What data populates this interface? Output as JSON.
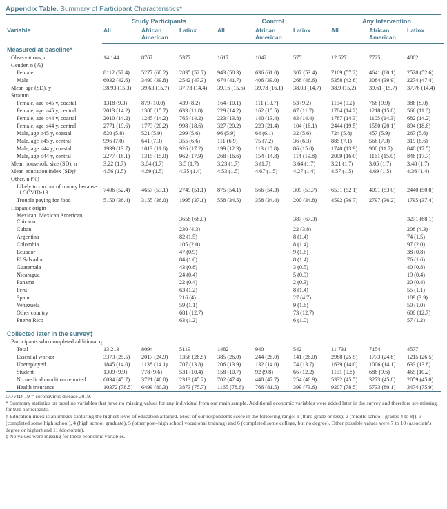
{
  "title_prefix": "Appendix Table.",
  "title_rest": " Summary of Participant Characteristics*",
  "col_var": "Variable",
  "groups": [
    "Study Participants",
    "Control",
    "Any Intervention"
  ],
  "subcols": [
    "All",
    "African American",
    "Latinx",
    "All",
    "African American",
    "Latinx",
    "All",
    "African American",
    "Latinx"
  ],
  "section1": "Measured at baseline*",
  "rows1": [
    {
      "l": "Observations, n",
      "i": 1,
      "v": [
        "14 144",
        "8767",
        "5377",
        "1617",
        "1042",
        "575",
        "12 527",
        "7725",
        "4802"
      ]
    },
    {
      "l": "Gender, n (%)",
      "i": 1,
      "v": [
        "",
        "",
        "",
        "",
        "",
        "",
        "",
        "",
        ""
      ]
    },
    {
      "l": "Female",
      "i": 2,
      "v": [
        "8112 (57.4)",
        "5277 (60.2)",
        "2835 (52.7)",
        "943 (58.3)",
        "636 (61.0)",
        "307 (53.4)",
        "7169 (57.2)",
        "4641 (60.1)",
        "2528 (52.6)"
      ]
    },
    {
      "l": "Male",
      "i": 2,
      "v": [
        "6032 (42.6)",
        "3490 (39.8)",
        "2542 (47.3)",
        "674 (41.7)",
        "406 (39.0)",
        "268 (46.6)",
        "5358 (42.8)",
        "3084 (39.9)",
        "2274 (47.4)"
      ]
    },
    {
      "l": "Mean age (SD), y",
      "i": 1,
      "v": [
        "38.93 (15.3)",
        "39.63 (15.7)",
        "37.78 (14.4)",
        "39.16 (15.6)",
        "39.78 (16.1)",
        "38.03 (14.7)",
        "38.9 (15.2)",
        "39.61 (15.7)",
        "37.76 (14.4)"
      ]
    },
    {
      "l": "Stratum",
      "i": 1,
      "v": [
        "",
        "",
        "",
        "",
        "",
        "",
        "",
        "",
        ""
      ]
    },
    {
      "l": "Female, age ≥45 y, coastal",
      "i": 2,
      "v": [
        "1318 (9.3)",
        "879 (10.0)",
        "439 (8.2)",
        "164 (10.1)",
        "111 (10.7)",
        "53 (9.2)",
        "1154 (9.2)",
        "768 (9.9)",
        "386 (8.0)"
      ]
    },
    {
      "l": "Female, age ≥45 y, central",
      "i": 2,
      "v": [
        "2013 (14.2)",
        "1380 (15.7)",
        "633 (11.8)",
        "229 (14.2)",
        "162 (15.5)",
        "67 (11.7)",
        "1784 (14.2)",
        "1218 (15.8)",
        "566 (11.8)"
      ]
    },
    {
      "l": "Female, age ≤44 y, coastal",
      "i": 2,
      "v": [
        "2010 (14.2)",
        "1245 (14.2)",
        "765 (14.2)",
        "223 (13.8)",
        "140 (13.4)",
        "83 (14.4)",
        "1787 (14.3)",
        "1105 (14.3)",
        "682 (14.2)"
      ]
    },
    {
      "l": "Female, age ≤44 y, central",
      "i": 2,
      "v": [
        "2771 (19.6)",
        "1773 (20.2)",
        "998 (18.6)",
        "327 (20.2)",
        "223 (21.4)",
        "104 (18.1)",
        "2444 (19.5)",
        "1550 (20.1)",
        "894 (18.6)"
      ]
    },
    {
      "l": "Male, age ≥45 y, coastal",
      "i": 2,
      "v": [
        "820 (5.8)",
        "521 (5.9)",
        "299 (5.6)",
        "96 (5.9)",
        "64 (6.1)",
        "32 (5.6)",
        "724 (5.8)",
        "457 (5.9)",
        "267 (5.6)"
      ]
    },
    {
      "l": "Male, age ≥45 y, central",
      "i": 2,
      "v": [
        "996 (7.0)",
        "641 (7.3)",
        "355 (6.6)",
        "111 (6.9)",
        "75 (7.2)",
        "36 (6.3)",
        "885 (7.1)",
        "566 (7.3)",
        "319 (6.6)"
      ]
    },
    {
      "l": "Male, age ≤44 y, coastal",
      "i": 2,
      "v": [
        "1939 (13.7)",
        "1013 (11.6)",
        "926 (17.2)",
        "199 (12.3)",
        "113 (10.8)",
        "86 (15.0)",
        "1740 (13.9)",
        "900 (11.7)",
        "840 (17.5)"
      ]
    },
    {
      "l": "Male, age ≤44 y, central",
      "i": 2,
      "v": [
        "2277 (16.1)",
        "1315 (15.0)",
        "962 (17.9)",
        "268 (16.6)",
        "154 (14.8)",
        "114 (19.8)",
        "2009 (16.0)",
        "1161 (15.0)",
        "848 (17.7)"
      ]
    },
    {
      "l": "Mean household size (SD), n",
      "i": 1,
      "v": [
        "3.22 (1.7)",
        "3.04 (1.7)",
        "3.5 (1.7)",
        "3.23 (1.7)",
        "3 (1.7)",
        "3.64 (1.7)",
        "3.21 (1.7)",
        "3.05 (1.7)",
        "3.48 (1.7)"
      ]
    },
    {
      "l": "Mean education index (SD)†",
      "i": 1,
      "v": [
        "4.56 (1.5)",
        "4.69 (1.5)",
        "4.35 (1.4)",
        "4.53 (1.5)",
        "4.67 (1.5)",
        "4.27 (1.4)",
        "4.57 (1.5)",
        "4.69 (1.5)",
        "4.36 (1.4)"
      ]
    },
    {
      "l": "Other, n (%)",
      "i": 1,
      "v": [
        "",
        "",
        "",
        "",
        "",
        "",
        "",
        "",
        ""
      ]
    },
    {
      "l": "Likely to run out of money because of COVID-19",
      "i": 2,
      "v": [
        "7406 (52.4)",
        "4657 (53.1)",
        "2749 (51.1)",
        "875 (54.1)",
        "566 (54.3)",
        "309 (53.7)",
        "6531 (52.1)",
        "4091 (53.0)",
        "2440 (50.8)"
      ]
    },
    {
      "l": "Trouble paying for food",
      "i": 2,
      "v": [
        "5150 (36.4)",
        "3155 (36.0)",
        "1995 (37.1)",
        "558 (34.5)",
        "358 (34.4)",
        "200 (34.8)",
        "4592 (36.7)",
        "2797 (36.2)",
        "1795 (37.4)"
      ]
    },
    {
      "l": "Hispanic origin",
      "i": 1,
      "v": [
        "",
        "",
        "",
        "",
        "",
        "",
        "",
        "",
        ""
      ]
    },
    {
      "l": "Mexican, Mexican American, Chicano",
      "i": 2,
      "v": [
        "",
        "",
        "3658 (68.0)",
        "",
        "",
        "387 (67.3)",
        "",
        "",
        "3271 (68.1)"
      ]
    },
    {
      "l": "Cuban",
      "i": 2,
      "v": [
        "",
        "",
        "230 (4.3)",
        "",
        "",
        "22 (3.8)",
        "",
        "",
        "208 (4.3)"
      ]
    },
    {
      "l": "Argentina",
      "i": 2,
      "v": [
        "",
        "",
        "82 (1.5)",
        "",
        "",
        "8 (1.4)",
        "",
        "",
        "74 (1.5)"
      ]
    },
    {
      "l": "Colombia",
      "i": 2,
      "v": [
        "",
        "",
        "105 (2.0)",
        "",
        "",
        "8 (1.4)",
        "",
        "",
        "97 (2.0)"
      ]
    },
    {
      "l": "Ecuador",
      "i": 2,
      "v": [
        "",
        "",
        "47 (0.9)",
        "",
        "",
        "9 (1.6)",
        "",
        "",
        "38 (0.8)"
      ]
    },
    {
      "l": "El Salvador",
      "i": 2,
      "v": [
        "",
        "",
        "84 (1.6)",
        "",
        "",
        "8 (1.4)",
        "",
        "",
        "76 (1.6)"
      ]
    },
    {
      "l": "Guatemala",
      "i": 2,
      "v": [
        "",
        "",
        "43 (0.8)",
        "",
        "",
        "3 (0.5)",
        "",
        "",
        "40 (0.8)"
      ]
    },
    {
      "l": "Nicaragua",
      "i": 2,
      "v": [
        "",
        "",
        "24 (0.4)",
        "",
        "",
        "5 (0.9)",
        "",
        "",
        "19 (0.4)"
      ]
    },
    {
      "l": "Panama",
      "i": 2,
      "v": [
        "",
        "",
        "22 (0.4)",
        "",
        "",
        "2 (0.3)",
        "",
        "",
        "20 (0.4)"
      ]
    },
    {
      "l": "Peru",
      "i": 2,
      "v": [
        "",
        "",
        "63 (1.2)",
        "",
        "",
        "8 (1.4)",
        "",
        "",
        "55 (1.1)"
      ]
    },
    {
      "l": "Spain",
      "i": 2,
      "v": [
        "",
        "",
        "216 (4)",
        "",
        "",
        "27 (4.7)",
        "",
        "",
        "189 (3.9)"
      ]
    },
    {
      "l": "Venezuela",
      "i": 2,
      "v": [
        "",
        "",
        "59 (1.1)",
        "",
        "",
        "9 (1.6)",
        "",
        "",
        "50 (1.0)"
      ]
    },
    {
      "l": "Other country",
      "i": 2,
      "v": [
        "",
        "",
        "681 (12.7)",
        "",
        "",
        "73 (12.7)",
        "",
        "",
        "608 (12.7)"
      ]
    },
    {
      "l": "Puerto Rico",
      "i": 2,
      "v": [
        "",
        "",
        "63 (1.2)",
        "",
        "",
        "6 (1.0)",
        "",
        "",
        "57 (1.2)"
      ]
    }
  ],
  "section2": "Collected later in the survey‡",
  "rows2": [
    {
      "l": "Participants who completed additional questions on economic variables, n (%)",
      "i": 1,
      "v": [
        "",
        "",
        "",
        "",
        "",
        "",
        "",
        "",
        ""
      ]
    },
    {
      "l": "Total",
      "i": 2,
      "v": [
        "13 213",
        "8094",
        "5119",
        "1482",
        "940",
        "542",
        "11 731",
        "7154",
        "4577"
      ]
    },
    {
      "l": "Essential worker",
      "i": 2,
      "v": [
        "3373 (25.5)",
        "2017 (24.9)",
        "1356 (26.5)",
        "385 (26.0)",
        "244 (26.0)",
        "141 (26.0)",
        "2988 (25.5)",
        "1773 (24.8)",
        "1215 (26.5)"
      ]
    },
    {
      "l": "Unemployed",
      "i": 2,
      "v": [
        "1845 (14.0)",
        "1138 (14.1)",
        "707 (13.8)",
        "206 (13.9)",
        "132 (14.0)",
        "74 (13.7)",
        "1639 (14.0)",
        "1006 (14.1)",
        "633 (13.8)"
      ]
    },
    {
      "l": "Student",
      "i": 2,
      "v": [
        "1309 (9.9)",
        "778 (9.6)",
        "531 (10.4)",
        "158 (10.7)",
        "92 (9.8)",
        "66 (12.2)",
        "1151 (9.8)",
        "686 (9.6)",
        "465 (10.2)"
      ]
    },
    {
      "l": "No medical condition reported",
      "i": 2,
      "v": [
        "6034 (45.7)",
        "3721 (46.0)",
        "2313 (45.2)",
        "702 (47.4)",
        "448 (47.7)",
        "254 (46.9)",
        "5332 (45.5)",
        "3273 (45.8)",
        "2059 (45.0)"
      ]
    },
    {
      "l": "Health insurance",
      "i": 2,
      "v": [
        "10372 (78.5)",
        "6499 (80.3)",
        "3873 (75.7)",
        "1165 (78.6)",
        "766 (81.5)",
        "399 (73.6)",
        "9207 (78.5)",
        "5733 (80.1)",
        "3474 (75.9)"
      ]
    }
  ],
  "notes": [
    "COVID-19 = coronavirus disease 2019.",
    "* Summary statistics on baseline variables that have no missing values for any individual from our main sample. Additional economic variables were added later in the survey and therefore are missing for 931 participants.",
    "† Education index is an integer capturing the highest level of education attained. Most of our respondents score in the following range: 1 (third grade or less), 2 (middle school [grades 4 to 8]), 3 (completed some high school), 4 (high school graduate), 5 (other post–high school vocational training) and 6 (completed some college, but no degree). Other possible values were 7 to 10 (associate's degree or higher) and 11 (doctorate).",
    "‡ No values were missing for these economic variables."
  ]
}
